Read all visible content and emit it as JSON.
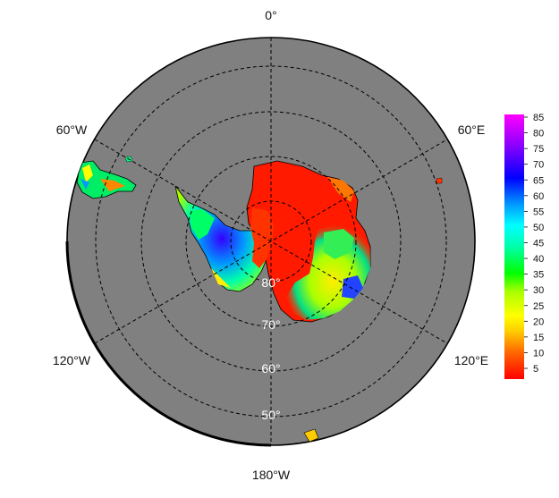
{
  "map": {
    "projection": "south-polar-stereographic",
    "background_color": "#808080",
    "graticule_style": "dashed",
    "meridian_labels": {
      "top": "0°",
      "left_upper": "60°W",
      "right_upper": "60°E",
      "left_lower": "120°W",
      "right_lower": "120°E",
      "bottom": "180°W"
    },
    "latitude_labels": [
      "80°",
      "70°",
      "60°",
      "50°"
    ]
  },
  "colorbar": {
    "ticks": [
      "85",
      "80",
      "75",
      "70",
      "65",
      "60",
      "55",
      "50",
      "45",
      "40",
      "35",
      "30",
      "25",
      "20",
      "15",
      "10",
      "5"
    ],
    "colors": [
      "#ff0000",
      "#ff6600",
      "#ffcc00",
      "#ffff00",
      "#aaff00",
      "#00ff00",
      "#00ffaa",
      "#00ffff",
      "#0099ff",
      "#0000ff",
      "#8800ff",
      "#ff00ff"
    ]
  }
}
